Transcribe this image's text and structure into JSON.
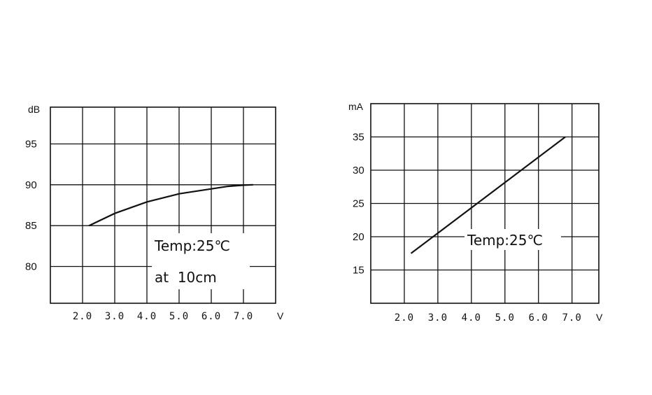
{
  "chart_data": [
    {
      "type": "line",
      "ylabel": "dB",
      "xlabel": "V",
      "x_ticks": [
        "2.0",
        "3.0",
        "4.0",
        "5.0",
        "6.0",
        "7.0"
      ],
      "y_ticks": [
        "95",
        "90",
        "85",
        "80"
      ],
      "y_tick_values": [
        95,
        90,
        85,
        80
      ],
      "xlim": [
        1.0,
        8.0
      ],
      "ylim": [
        75.5,
        99.5
      ],
      "grid": true,
      "x": [
        2.2,
        3.0,
        4.0,
        5.0,
        6.0,
        6.5,
        7.0,
        7.3
      ],
      "y": [
        85.0,
        86.5,
        87.9,
        88.9,
        89.5,
        89.8,
        89.95,
        90.0
      ],
      "annotations": [
        "Temp:25℃",
        "at  10cm"
      ]
    },
    {
      "type": "line",
      "ylabel": "mA",
      "xlabel": "V",
      "x_ticks": [
        "2.0",
        "3.0",
        "4.0",
        "5.0",
        "6.0",
        "7.0"
      ],
      "y_ticks": [
        "35",
        "30",
        "25",
        "20",
        "15"
      ],
      "y_tick_values": [
        35,
        30,
        25,
        20,
        15
      ],
      "xlim": [
        1.0,
        7.8
      ],
      "ylim": [
        10.0,
        40.0
      ],
      "grid": true,
      "x": [
        2.2,
        6.8
      ],
      "y": [
        17.5,
        35.0
      ],
      "annotations": [
        "Temp:25℃"
      ]
    }
  ]
}
